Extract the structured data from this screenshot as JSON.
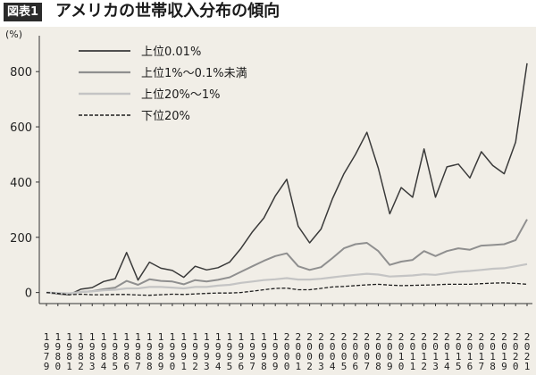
{
  "figure_label": "図表1",
  "title": "アメリカの世帯収入分布の傾向",
  "colors": {
    "background": "#f1eee7",
    "badge": "#2b2b2b"
  },
  "chart_data": {
    "type": "line",
    "ylabel": "(%)",
    "ylim": [
      -40,
      930
    ],
    "yticks": [
      0,
      200,
      400,
      600,
      800
    ],
    "grid": false,
    "legend_position": "top-left",
    "x": [
      "1979",
      "1980",
      "1981",
      "1982",
      "1983",
      "1984",
      "1985",
      "1986",
      "1987",
      "1988",
      "1989",
      "1990",
      "1991",
      "1992",
      "1993",
      "1994",
      "1995",
      "1996",
      "1997",
      "1998",
      "1999",
      "2000",
      "2001",
      "2002",
      "2003",
      "2004",
      "2005",
      "2006",
      "2007",
      "2008",
      "2009",
      "2010",
      "2011",
      "2012",
      "2013",
      "2014",
      "2015",
      "2016",
      "2017",
      "2018",
      "2019",
      "2020",
      "2021"
    ],
    "series": [
      {
        "name": "上位0.01%",
        "color": "#3a3a3a",
        "dash": "solid",
        "width": 1.5,
        "values": [
          0,
          -5,
          -8,
          12,
          18,
          40,
          50,
          145,
          45,
          110,
          88,
          80,
          55,
          95,
          82,
          90,
          110,
          160,
          220,
          270,
          350,
          410,
          240,
          180,
          230,
          340,
          430,
          500,
          580,
          450,
          285,
          380,
          345,
          520,
          345,
          455,
          465,
          415,
          510,
          460,
          430,
          545,
          830
        ]
      },
      {
        "name": "上位1%～0.1%未満",
        "color": "#8f8f8f",
        "dash": "solid",
        "width": 2,
        "values": [
          0,
          -3,
          -5,
          2,
          5,
          12,
          18,
          42,
          28,
          48,
          42,
          40,
          30,
          45,
          40,
          46,
          55,
          75,
          95,
          115,
          132,
          142,
          95,
          82,
          92,
          125,
          160,
          175,
          180,
          150,
          100,
          112,
          118,
          150,
          132,
          150,
          160,
          155,
          170,
          172,
          175,
          190,
          265
        ]
      },
      {
        "name": "上位20%～1%",
        "color": "#c4c4c4",
        "dash": "solid",
        "width": 2.2,
        "values": [
          0,
          -2,
          -3,
          2,
          4,
          8,
          10,
          15,
          15,
          20,
          20,
          18,
          15,
          20,
          20,
          25,
          28,
          35,
          40,
          45,
          48,
          52,
          47,
          47,
          50,
          55,
          60,
          64,
          68,
          65,
          58,
          60,
          62,
          66,
          64,
          70,
          75,
          78,
          82,
          86,
          88,
          95,
          103
        ]
      },
      {
        "name": "下位20%",
        "color": "#1f1f1f",
        "dash": "dashed",
        "width": 1.3,
        "values": [
          0,
          -3,
          -8,
          -6,
          -8,
          -8,
          -7,
          -7,
          -9,
          -10,
          -8,
          -6,
          -7,
          -5,
          -3,
          -2,
          -2,
          0,
          5,
          10,
          15,
          16,
          10,
          10,
          15,
          20,
          22,
          25,
          28,
          30,
          27,
          25,
          26,
          27,
          28,
          30,
          30,
          30,
          32,
          34,
          35,
          33,
          30
        ]
      }
    ]
  }
}
